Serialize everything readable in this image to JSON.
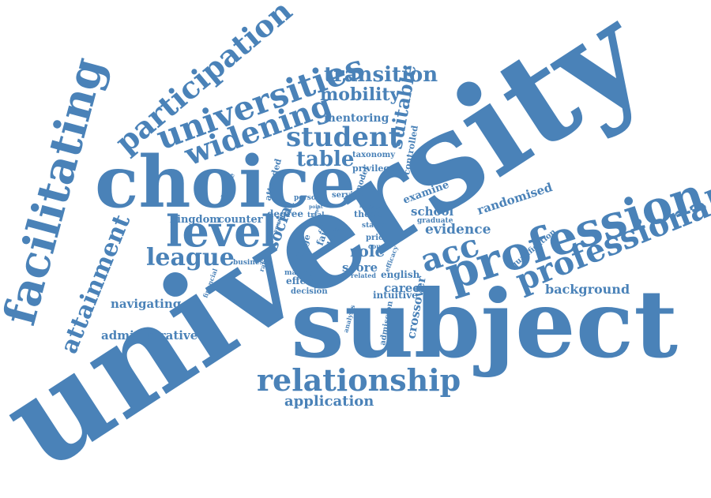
{
  "color": "#4a82b8",
  "words": [
    {
      "text": "university"
    },
    {
      "text": "subject"
    },
    {
      "text": "choice"
    },
    {
      "text": "profession"
    },
    {
      "text": "professional"
    },
    {
      "text": "facilitating"
    },
    {
      "text": "universities"
    },
    {
      "text": "participation"
    },
    {
      "text": "widening"
    },
    {
      "text": "student"
    },
    {
      "text": "level"
    },
    {
      "text": "relationship"
    },
    {
      "text": "attainment"
    },
    {
      "text": "transition"
    },
    {
      "text": "mobility"
    },
    {
      "text": "table"
    },
    {
      "text": "league"
    },
    {
      "text": "acc"
    },
    {
      "text": "suitable"
    },
    {
      "text": "mentoring"
    },
    {
      "text": "background"
    },
    {
      "text": "application"
    },
    {
      "text": "school"
    },
    {
      "text": "evidence"
    },
    {
      "text": "randomised"
    },
    {
      "text": "examine"
    },
    {
      "text": "navigating"
    },
    {
      "text": "administrative"
    },
    {
      "text": "career"
    },
    {
      "text": "social"
    },
    {
      "text": "role"
    },
    {
      "text": "score"
    },
    {
      "text": "kingdom"
    },
    {
      "text": "counter"
    },
    {
      "text": "degree"
    },
    {
      "text": "crossover"
    },
    {
      "text": "controlled"
    },
    {
      "text": "privileged"
    },
    {
      "text": "taxonomy"
    },
    {
      "text": "attended"
    },
    {
      "text": "selective"
    },
    {
      "text": "service"
    },
    {
      "text": "model"
    },
    {
      "text": "person"
    },
    {
      "text": "thesis"
    },
    {
      "text": "status"
    },
    {
      "text": "graduate"
    },
    {
      "text": "qualification"
    },
    {
      "text": "intuitive"
    },
    {
      "text": "english"
    },
    {
      "text": "prior"
    },
    {
      "text": "course"
    },
    {
      "text": "related"
    },
    {
      "text": "effect"
    },
    {
      "text": "decision"
    },
    {
      "text": "making"
    },
    {
      "text": "data"
    },
    {
      "text": "college"
    },
    {
      "text": "fair"
    },
    {
      "text": "business"
    },
    {
      "text": "ranking"
    },
    {
      "text": "financial"
    },
    {
      "text": "admission"
    },
    {
      "text": "analysis"
    },
    {
      "text": "efficacy"
    },
    {
      "text": "trial"
    },
    {
      "text": "young"
    },
    {
      "text": "point"
    },
    {
      "text": "entry"
    },
    {
      "text": "more"
    },
    {
      "text": "cite"
    },
    {
      "text": "colleges"
    },
    {
      "text": "few"
    }
  ]
}
